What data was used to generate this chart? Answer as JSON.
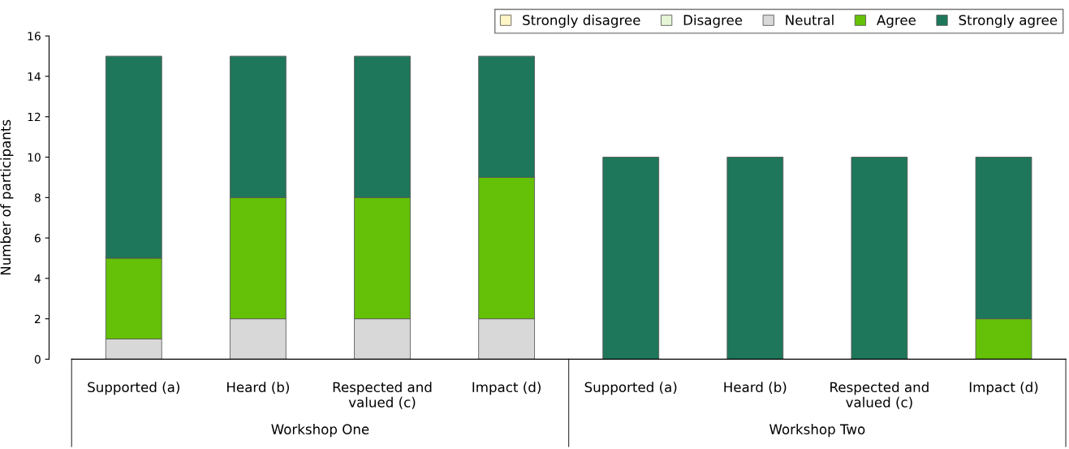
{
  "chart_data": {
    "type": "bar",
    "stacked": true,
    "ylabel": "Number of participants",
    "categories": [
      "Supported (a)",
      "Heard (b)",
      "Respected and\nvalued (c)",
      "Impact (d)",
      "Supported (a)",
      "Heard (b)",
      "Respected and\nvalued (c)",
      "Impact (d)"
    ],
    "series": [
      {
        "name": "Strongly disagree",
        "color": "#fff5c6",
        "values": [
          0,
          0,
          0,
          0,
          0,
          0,
          0,
          0
        ]
      },
      {
        "name": "Disagree",
        "color": "#e6f5d6",
        "values": [
          0,
          0,
          0,
          0,
          0,
          0,
          0,
          0
        ]
      },
      {
        "name": "Neutral",
        "color": "#d9d8d8",
        "values": [
          1,
          2,
          2,
          2,
          0,
          0,
          0,
          0
        ]
      },
      {
        "name": "Agree",
        "color": "#64c107",
        "values": [
          4,
          6,
          6,
          7,
          0,
          0,
          0,
          2
        ]
      },
      {
        "name": "Strongly agree",
        "color": "#1e775a",
        "values": [
          10,
          7,
          7,
          6,
          10,
          10,
          10,
          8
        ]
      }
    ],
    "ylim": [
      0,
      16
    ],
    "yticks": [
      0,
      2,
      4,
      6,
      8,
      10,
      12,
      14,
      16
    ],
    "annotations": [
      "Workshop One",
      "Workshop Two"
    ],
    "grid": false,
    "legend": "top right"
  }
}
